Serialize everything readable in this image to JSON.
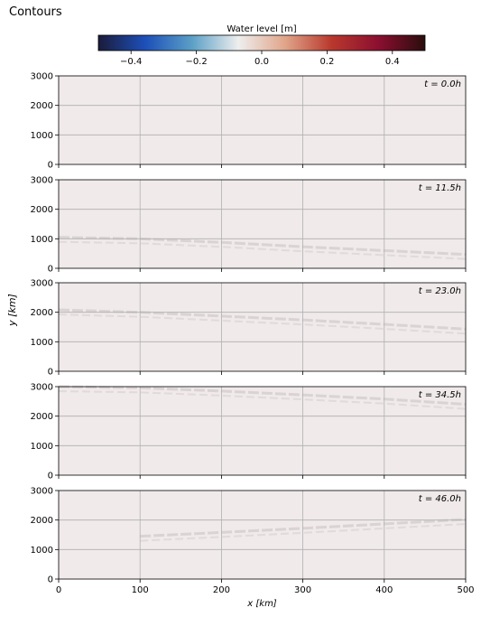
{
  "header": {
    "title": "Contours"
  },
  "colorbar": {
    "label": "Water level [m]",
    "range": [
      -0.5,
      0.5
    ],
    "ticks": [
      -0.4,
      -0.2,
      0.0,
      0.2,
      0.4
    ],
    "tick_labels": [
      "−0.4",
      "−0.2",
      "0.0",
      "0.2",
      "0.4"
    ],
    "colormap": [
      "#1b1b3a",
      "#1d4fb8",
      "#5a9fc6",
      "#eeeeee",
      "#e0a58a",
      "#b8382d",
      "#8b0f30",
      "#2a0d0d"
    ]
  },
  "chart_data": {
    "type": "heatmap",
    "title": "",
    "xlabel": "x [km]",
    "ylabel": "y [km]",
    "xlim": [
      0,
      500
    ],
    "ylim": [
      0,
      3000
    ],
    "x_ticks": [
      0,
      100,
      200,
      300,
      400,
      500
    ],
    "y_ticks": [
      0,
      1000,
      2000,
      3000
    ],
    "grid": true,
    "background_color": "#f0eaea",
    "panels": [
      {
        "label": "t = 0.0h",
        "front": []
      },
      {
        "label": "t = 11.5h",
        "front": [
          [
            0,
            1050
          ],
          [
            100,
            1000
          ],
          [
            200,
            880
          ],
          [
            300,
            730
          ],
          [
            400,
            600
          ],
          [
            500,
            470
          ]
        ]
      },
      {
        "label": "t = 23.0h",
        "front": [
          [
            0,
            2080
          ],
          [
            100,
            2000
          ],
          [
            200,
            1870
          ],
          [
            300,
            1740
          ],
          [
            400,
            1590
          ],
          [
            500,
            1430
          ]
        ]
      },
      {
        "label": "t = 34.5h",
        "front": [
          [
            0,
            3000
          ],
          [
            100,
            2960
          ],
          [
            200,
            2850
          ],
          [
            300,
            2720
          ],
          [
            400,
            2580
          ],
          [
            500,
            2400
          ]
        ]
      },
      {
        "label": "t = 46.0h",
        "front": [
          [
            100,
            1450
          ],
          [
            200,
            1580
          ],
          [
            300,
            1720
          ],
          [
            400,
            1870
          ],
          [
            500,
            2020
          ]
        ]
      }
    ]
  }
}
